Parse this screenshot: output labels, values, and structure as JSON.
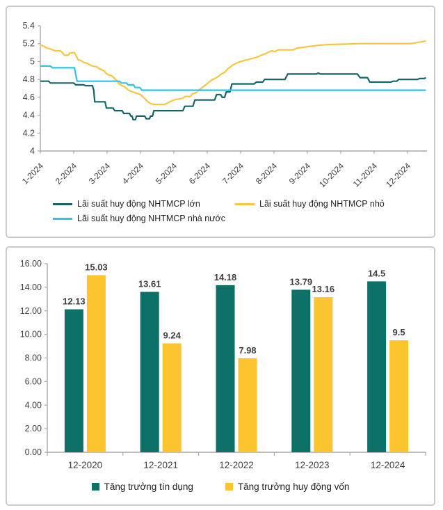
{
  "page": {
    "background": "#ffffff",
    "panel_border_color": "#cbcbcb"
  },
  "colors": {
    "axis_line": "#a8a8a8",
    "tick_label": "#3f3f3f",
    "value_label": "#3f3f3f",
    "legend_text": "#1f1f1f",
    "teal_line": "#14656b",
    "yellow_line": "#f8c53e",
    "cyan_line": "#2bc4e8",
    "teal_bar": "#0e7167",
    "yellow_bar": "#fcc42f"
  },
  "chart_data": [
    {
      "type": "line",
      "title": "",
      "grid": false,
      "legend_position": "bottom",
      "y_axis": {
        "min": 4.0,
        "max": 5.4,
        "step": 0.2,
        "tick_labels": [
          "5.4",
          "5.2",
          "5",
          "4.8",
          "4.6",
          "4.4",
          "4.2",
          "4"
        ]
      },
      "x_axis": {
        "labels": [
          "1-2024",
          "2-2024",
          "3-2024",
          "4-2024",
          "5-2024",
          "6-2024",
          "7-2024",
          "8-2024",
          "9-2024",
          "10-2024",
          "11-2024",
          "12-2024"
        ],
        "label_rotation_deg": -45
      },
      "series": [
        {
          "name": "Lãi suất huy động NHTMCP lớn",
          "color": "#14656b",
          "points": [
            [
              1.0,
              4.78
            ],
            [
              1.25,
              4.78
            ],
            [
              1.3,
              4.76
            ],
            [
              2.0,
              4.76
            ],
            [
              2.06,
              4.74
            ],
            [
              2.3,
              4.74
            ],
            [
              2.35,
              4.73
            ],
            [
              2.56,
              4.73
            ],
            [
              2.6,
              4.68
            ],
            [
              2.63,
              4.55
            ],
            [
              2.94,
              4.55
            ],
            [
              2.98,
              4.48
            ],
            [
              3.18,
              4.48
            ],
            [
              3.23,
              4.45
            ],
            [
              3.45,
              4.45
            ],
            [
              3.5,
              4.42
            ],
            [
              3.67,
              4.42
            ],
            [
              3.71,
              4.39
            ],
            [
              3.75,
              4.39
            ],
            [
              3.78,
              4.35
            ],
            [
              3.85,
              4.35
            ],
            [
              3.88,
              4.39
            ],
            [
              4.13,
              4.39
            ],
            [
              4.17,
              4.36
            ],
            [
              4.27,
              4.36
            ],
            [
              4.3,
              4.39
            ],
            [
              4.36,
              4.39
            ],
            [
              4.4,
              4.45
            ],
            [
              5.27,
              4.45
            ],
            [
              5.33,
              4.5
            ],
            [
              5.57,
              4.5
            ],
            [
              5.63,
              4.57
            ],
            [
              6.22,
              4.57
            ],
            [
              6.28,
              4.63
            ],
            [
              6.4,
              4.63
            ],
            [
              6.45,
              4.6
            ],
            [
              6.52,
              4.6
            ],
            [
              6.57,
              4.66
            ],
            [
              6.68,
              4.66
            ],
            [
              6.74,
              4.75
            ],
            [
              7.4,
              4.75
            ],
            [
              7.47,
              4.77
            ],
            [
              7.66,
              4.77
            ],
            [
              7.72,
              4.8
            ],
            [
              8.33,
              4.8
            ],
            [
              8.41,
              4.86
            ],
            [
              9.27,
              4.86
            ],
            [
              9.32,
              4.87
            ],
            [
              9.4,
              4.86
            ],
            [
              10.5,
              4.86
            ],
            [
              10.58,
              4.82
            ],
            [
              10.8,
              4.82
            ],
            [
              10.87,
              4.77
            ],
            [
              11.5,
              4.77
            ],
            [
              11.57,
              4.78
            ],
            [
              11.68,
              4.78
            ],
            [
              11.74,
              4.8
            ],
            [
              12.3,
              4.8
            ],
            [
              12.36,
              4.81
            ],
            [
              12.5,
              4.81
            ],
            [
              12.55,
              4.82
            ]
          ]
        },
        {
          "name": "Lãi suất huy động NHTMCP nhỏ",
          "color": "#f8c53e",
          "points": [
            [
              1.0,
              5.185
            ],
            [
              1.12,
              5.17
            ],
            [
              1.17,
              5.155
            ],
            [
              1.3,
              5.14
            ],
            [
              1.38,
              5.13
            ],
            [
              1.44,
              5.12
            ],
            [
              1.6,
              5.12
            ],
            [
              1.66,
              5.1
            ],
            [
              1.72,
              5.07
            ],
            [
              1.84,
              5.07
            ],
            [
              1.88,
              5.095
            ],
            [
              2.02,
              5.1
            ],
            [
              2.08,
              5.06
            ],
            [
              2.13,
              5.02
            ],
            [
              2.22,
              5.01
            ],
            [
              2.3,
              4.99
            ],
            [
              2.4,
              4.98
            ],
            [
              2.5,
              4.96
            ],
            [
              2.56,
              4.95
            ],
            [
              2.7,
              4.94
            ],
            [
              2.76,
              4.92
            ],
            [
              2.9,
              4.9
            ],
            [
              2.96,
              4.87
            ],
            [
              3.04,
              4.85
            ],
            [
              3.14,
              4.84
            ],
            [
              3.2,
              4.82
            ],
            [
              3.28,
              4.79
            ],
            [
              3.36,
              4.75
            ],
            [
              3.44,
              4.73
            ],
            [
              3.52,
              4.72
            ],
            [
              3.58,
              4.7
            ],
            [
              3.64,
              4.68
            ],
            [
              3.76,
              4.66
            ],
            [
              3.84,
              4.65
            ],
            [
              3.94,
              4.64
            ],
            [
              4.0,
              4.63
            ],
            [
              4.06,
              4.61
            ],
            [
              4.14,
              4.58
            ],
            [
              4.22,
              4.55
            ],
            [
              4.3,
              4.53
            ],
            [
              4.4,
              4.52
            ],
            [
              4.7,
              4.52
            ],
            [
              4.78,
              4.53
            ],
            [
              4.88,
              4.55
            ],
            [
              5.0,
              4.57
            ],
            [
              5.12,
              4.58
            ],
            [
              5.28,
              4.59
            ],
            [
              5.34,
              4.61
            ],
            [
              5.5,
              4.61
            ],
            [
              5.56,
              4.64
            ],
            [
              5.66,
              4.65
            ],
            [
              5.74,
              4.68
            ],
            [
              5.82,
              4.7
            ],
            [
              5.92,
              4.73
            ],
            [
              6.02,
              4.76
            ],
            [
              6.12,
              4.79
            ],
            [
              6.22,
              4.81
            ],
            [
              6.32,
              4.83
            ],
            [
              6.42,
              4.86
            ],
            [
              6.52,
              4.88
            ],
            [
              6.62,
              4.92
            ],
            [
              6.76,
              4.96
            ],
            [
              6.92,
              4.99
            ],
            [
              7.1,
              5.01
            ],
            [
              7.3,
              5.03
            ],
            [
              7.5,
              5.05
            ],
            [
              7.62,
              5.07
            ],
            [
              7.76,
              5.09
            ],
            [
              7.86,
              5.11
            ],
            [
              7.94,
              5.12
            ],
            [
              8.02,
              5.11
            ],
            [
              8.12,
              5.13
            ],
            [
              8.58,
              5.13
            ],
            [
              8.7,
              5.15
            ],
            [
              8.9,
              5.16
            ],
            [
              9.06,
              5.17
            ],
            [
              9.3,
              5.18
            ],
            [
              9.6,
              5.19
            ],
            [
              10.2,
              5.195
            ],
            [
              10.6,
              5.2
            ],
            [
              12.1,
              5.2
            ],
            [
              12.25,
              5.21
            ],
            [
              12.42,
              5.22
            ],
            [
              12.55,
              5.23
            ]
          ]
        },
        {
          "name": "Lãi suất huy động NHTMCP nhà nước",
          "color": "#2bc4e8",
          "points": [
            [
              1.0,
              4.95
            ],
            [
              1.3,
              4.95
            ],
            [
              1.36,
              4.93
            ],
            [
              2.02,
              4.93
            ],
            [
              2.1,
              4.78
            ],
            [
              3.36,
              4.78
            ],
            [
              3.43,
              4.76
            ],
            [
              3.58,
              4.76
            ],
            [
              3.63,
              4.74
            ],
            [
              3.79,
              4.74
            ],
            [
              3.84,
              4.71
            ],
            [
              3.98,
              4.71
            ],
            [
              4.04,
              4.68
            ],
            [
              12.55,
              4.68
            ]
          ]
        }
      ]
    },
    {
      "type": "bar",
      "title": "",
      "grid": false,
      "legend_position": "bottom",
      "categories": [
        "12-2020",
        "12-2021",
        "12-2022",
        "12-2023",
        "12-2024"
      ],
      "y_axis": {
        "min": 0,
        "max": 16,
        "step": 2,
        "tick_labels": [
          "16.00",
          "14.00",
          "12.00",
          "10.00",
          "8.00",
          "6.00",
          "4.00",
          "2.00",
          "0.00"
        ]
      },
      "series": [
        {
          "name": "Tăng trưởng tín dụng",
          "color": "#0e7167",
          "values": [
            12.13,
            13.61,
            14.18,
            13.79,
            14.5
          ],
          "value_labels": [
            "12.13",
            "13.61",
            "14.18",
            "13.79",
            "14.5"
          ]
        },
        {
          "name": "Tăng trưởng huy động vốn",
          "color": "#fcc42f",
          "values": [
            15.03,
            9.24,
            7.98,
            13.16,
            9.5
          ],
          "value_labels": [
            "15.03",
            "9.24",
            "7.98",
            "13.16",
            "9.5"
          ]
        }
      ]
    }
  ]
}
